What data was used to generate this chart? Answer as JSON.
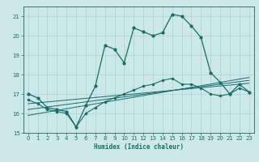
{
  "xlabel": "Humidex (Indice chaleur)",
  "xlim": [
    -0.5,
    23.5
  ],
  "ylim": [
    15,
    21.5
  ],
  "yticks": [
    15,
    16,
    17,
    18,
    19,
    20,
    21
  ],
  "xticks": [
    0,
    1,
    2,
    3,
    4,
    5,
    6,
    7,
    8,
    9,
    10,
    11,
    12,
    13,
    14,
    15,
    16,
    17,
    18,
    19,
    20,
    21,
    22,
    23
  ],
  "bg_color": "#cce8e8",
  "line_color": "#1a6b6b",
  "grid_color": "#aed0d0",
  "line1_x": [
    0,
    1,
    2,
    3,
    4,
    5,
    6,
    7,
    8,
    9,
    10,
    11,
    12,
    13,
    14,
    15,
    16,
    17,
    18,
    19,
    20,
    21,
    22,
    23
  ],
  "line1_y": [
    17.0,
    16.8,
    16.3,
    16.2,
    16.1,
    15.3,
    16.4,
    17.4,
    19.5,
    19.3,
    18.6,
    20.4,
    20.2,
    20.0,
    20.15,
    21.1,
    21.0,
    20.5,
    19.9,
    18.1,
    17.6,
    17.0,
    17.5,
    17.1
  ],
  "line2_x": [
    0,
    1,
    2,
    3,
    4,
    5,
    6,
    7,
    8,
    9,
    10,
    11,
    12,
    13,
    14,
    15,
    16,
    17,
    18,
    19,
    20,
    21,
    22,
    23
  ],
  "line2_y": [
    16.7,
    16.5,
    16.2,
    16.1,
    16.0,
    15.3,
    16.0,
    16.3,
    16.6,
    16.8,
    17.0,
    17.2,
    17.4,
    17.5,
    17.7,
    17.8,
    17.5,
    17.5,
    17.3,
    17.0,
    16.9,
    17.0,
    17.3,
    17.1
  ],
  "line3_x": [
    0,
    23
  ],
  "line3_y": [
    16.5,
    17.55
  ],
  "line4_x": [
    0,
    23
  ],
  "line4_y": [
    16.2,
    17.7
  ],
  "line5_x": [
    0,
    23
  ],
  "line5_y": [
    15.9,
    17.85
  ]
}
